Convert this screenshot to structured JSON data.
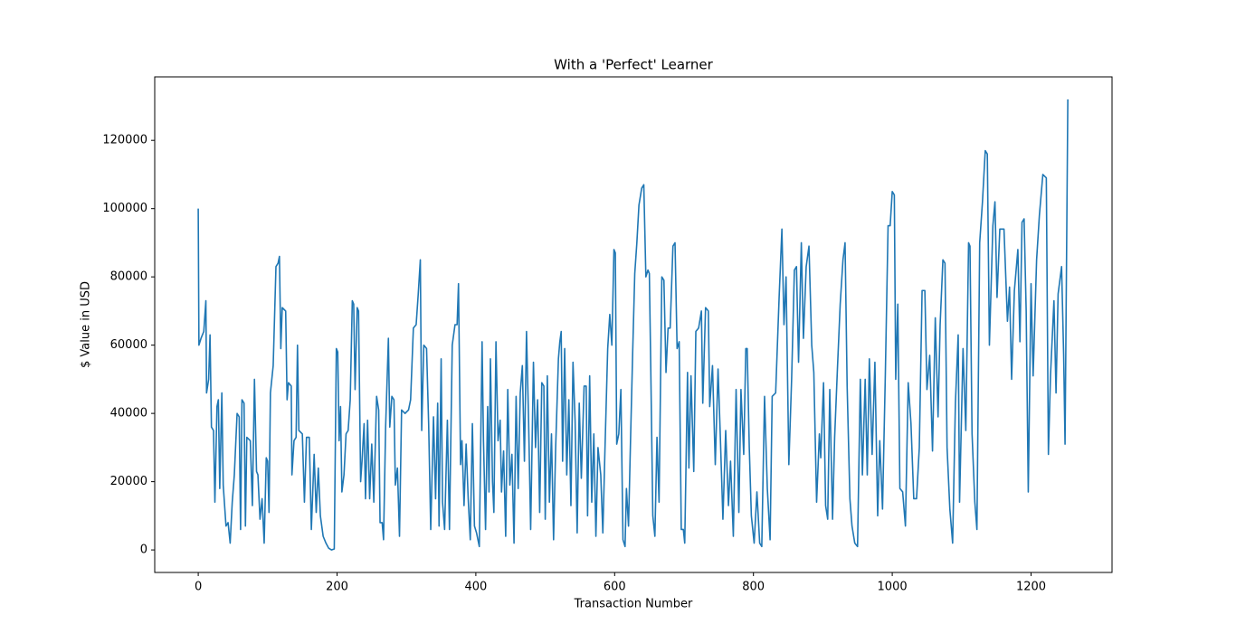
{
  "chart_data": {
    "type": "line",
    "title": "With a 'Perfect' Learner",
    "x_label": "Transaction Number",
    "y_label": "$ Value in USD",
    "xlim": [
      -62.7,
      1316.7
    ],
    "xticks": [
      0,
      200,
      400,
      600,
      800,
      1000,
      1200
    ],
    "ylim": [
      -6600,
      138600
    ],
    "yticks": [
      0,
      20000,
      40000,
      60000,
      80000,
      100000,
      120000
    ],
    "grid": false,
    "x": [
      0,
      1,
      4,
      8,
      11,
      12,
      15,
      17,
      19,
      22,
      24,
      27,
      29,
      31,
      34,
      36,
      40,
      43,
      46,
      49,
      52,
      56,
      59,
      61,
      63,
      66,
      68,
      70,
      75,
      78,
      81,
      84,
      86,
      89,
      92,
      95,
      98,
      100,
      102,
      104,
      108,
      112,
      115,
      117,
      119,
      121,
      126,
      128,
      130,
      134,
      135,
      138,
      141,
      143,
      145,
      150,
      153,
      156,
      160,
      163,
      167,
      170,
      173,
      176,
      180,
      184,
      188,
      192,
      196,
      199,
      201,
      203,
      205,
      207,
      210,
      213,
      216,
      219,
      222,
      224,
      226,
      229,
      231,
      234,
      236,
      239,
      241,
      244,
      247,
      250,
      253,
      257,
      260,
      262,
      265,
      267,
      270,
      274,
      276,
      279,
      282,
      284,
      287,
      290,
      293,
      298,
      303,
      306,
      310,
      314,
      317,
      320,
      322,
      325,
      329,
      332,
      335,
      339,
      342,
      345,
      347,
      350,
      352,
      355,
      359,
      362,
      366,
      370,
      373,
      375,
      378,
      380,
      383,
      386,
      389,
      392,
      395,
      398,
      401,
      405,
      409,
      411,
      414,
      417,
      419,
      421,
      424,
      426,
      429,
      432,
      435,
      437,
      440,
      443,
      446,
      449,
      452,
      455,
      458,
      461,
      464,
      467,
      470,
      473,
      476,
      479,
      483,
      486,
      489,
      492,
      495,
      498,
      500,
      503,
      506,
      509,
      512,
      515,
      519,
      521,
      523,
      525,
      528,
      531,
      534,
      537,
      540,
      543,
      546,
      549,
      552,
      556,
      559,
      561,
      564,
      567,
      570,
      573,
      576,
      580,
      583,
      586,
      590,
      593,
      596,
      599,
      601,
      603,
      606,
      609,
      612,
      615,
      617,
      620,
      623,
      626,
      629,
      632,
      635,
      639,
      642,
      645,
      648,
      650,
      652,
      655,
      658,
      661,
      664,
      668,
      671,
      674,
      677,
      680,
      684,
      687,
      690,
      693,
      696,
      699,
      701,
      705,
      707,
      710,
      714,
      717,
      721,
      725,
      727,
      731,
      735,
      737,
      741,
      745,
      749,
      752,
      756,
      760,
      764,
      767,
      771,
      775,
      779,
      782,
      786,
      789,
      791,
      794,
      797,
      801,
      805,
      809,
      812,
      816,
      820,
      824,
      827,
      832,
      837,
      841,
      844,
      847,
      851,
      855,
      859,
      862,
      865,
      869,
      872,
      876,
      880,
      884,
      887,
      891,
      895,
      897,
      901,
      904,
      907,
      910,
      914,
      917,
      921,
      925,
      929,
      932,
      935,
      939,
      942,
      946,
      950,
      954,
      957,
      961,
      964,
      967,
      971,
      975,
      979,
      982,
      986,
      990,
      994,
      997,
      1000,
      1003,
      1005,
      1008,
      1011,
      1015,
      1019,
      1023,
      1027,
      1031,
      1035,
      1039,
      1043,
      1047,
      1050,
      1054,
      1058,
      1062,
      1066,
      1069,
      1073,
      1076,
      1079,
      1083,
      1087,
      1091,
      1095,
      1097,
      1102,
      1106,
      1110,
      1112,
      1115,
      1119,
      1122,
      1126,
      1130,
      1134,
      1137,
      1140,
      1145,
      1148,
      1151,
      1155,
      1161,
      1166,
      1169,
      1172,
      1176,
      1181,
      1184,
      1187,
      1190,
      1193,
      1196,
      1200,
      1203,
      1208,
      1212,
      1217,
      1222,
      1225,
      1228,
      1233,
      1236,
      1239,
      1244,
      1247,
      1249,
      1253
    ],
    "series": [
      {
        "color": "#1f77b4",
        "values": [
          100000,
          60000,
          62000,
          64000,
          73000,
          46000,
          50000,
          63000,
          36000,
          35000,
          14000,
          42000,
          44000,
          18000,
          46000,
          19000,
          7000,
          8000,
          2000,
          14000,
          22000,
          40000,
          39000,
          6000,
          44000,
          43000,
          7000,
          33000,
          32000,
          13000,
          50000,
          23000,
          22000,
          9000,
          15000,
          2000,
          27000,
          26000,
          11000,
          46000,
          54000,
          83000,
          84000,
          86000,
          59000,
          71000,
          70000,
          44000,
          49000,
          48000,
          22000,
          32000,
          33000,
          60000,
          35000,
          34000,
          14000,
          33000,
          33000,
          6000,
          28000,
          11000,
          24000,
          10000,
          4000,
          2000,
          500,
          0,
          300,
          59000,
          58000,
          32000,
          42000,
          17000,
          22000,
          34000,
          35000,
          44000,
          73000,
          72000,
          47000,
          71000,
          70000,
          20000,
          26000,
          37000,
          15000,
          38000,
          15000,
          31000,
          14000,
          45000,
          41000,
          8000,
          8000,
          3000,
          36000,
          62000,
          36000,
          45000,
          44000,
          19000,
          24000,
          4000,
          41000,
          40000,
          41000,
          44000,
          65000,
          66000,
          75000,
          85000,
          35000,
          60000,
          59000,
          37000,
          6000,
          39000,
          15000,
          43000,
          7000,
          56000,
          14000,
          6000,
          38000,
          6000,
          60000,
          66000,
          66000,
          78000,
          25000,
          32000,
          13000,
          31000,
          15000,
          3000,
          37000,
          7000,
          5000,
          1000,
          61000,
          32000,
          6000,
          42000,
          17000,
          56000,
          20000,
          11000,
          61000,
          32000,
          38000,
          17000,
          29000,
          4000,
          47000,
          19000,
          28000,
          2000,
          45000,
          18000,
          46000,
          54000,
          26000,
          64000,
          38000,
          6000,
          55000,
          30000,
          44000,
          11000,
          49000,
          48000,
          9000,
          51000,
          14000,
          34000,
          3000,
          30000,
          56000,
          61000,
          64000,
          26000,
          59000,
          22000,
          44000,
          13000,
          55000,
          38000,
          5000,
          43000,
          21000,
          48000,
          48000,
          10000,
          51000,
          14000,
          34000,
          4000,
          30000,
          22000,
          5000,
          29000,
          59000,
          69000,
          60000,
          88000,
          87000,
          31000,
          34000,
          47000,
          3000,
          1000,
          18000,
          7000,
          33000,
          58000,
          81000,
          90000,
          101000,
          106000,
          107000,
          80000,
          82000,
          81000,
          54000,
          10000,
          4000,
          33000,
          14000,
          80000,
          79000,
          52000,
          65000,
          65000,
          89000,
          90000,
          59000,
          61000,
          6000,
          6000,
          2000,
          52000,
          24000,
          51000,
          23000,
          64000,
          65000,
          70000,
          43000,
          71000,
          70000,
          42000,
          54000,
          25000,
          53000,
          35000,
          9000,
          35000,
          13000,
          26000,
          4000,
          47000,
          11000,
          47000,
          28000,
          59000,
          59000,
          30000,
          10000,
          2000,
          17000,
          2000,
          1000,
          45000,
          18000,
          3000,
          45000,
          46000,
          74000,
          94000,
          66000,
          80000,
          25000,
          50000,
          82000,
          83000,
          55000,
          90000,
          62000,
          83000,
          89000,
          60000,
          52000,
          14000,
          34000,
          27000,
          49000,
          13000,
          9000,
          47000,
          9000,
          33000,
          53000,
          72000,
          85000,
          90000,
          48000,
          15000,
          7000,
          2000,
          1000,
          50000,
          22000,
          50000,
          22000,
          56000,
          28000,
          55000,
          10000,
          32000,
          12000,
          51000,
          95000,
          95000,
          105000,
          104000,
          50000,
          72000,
          18000,
          17000,
          7000,
          49000,
          37000,
          15000,
          15000,
          30000,
          76000,
          76000,
          47000,
          57000,
          29000,
          68000,
          39000,
          66000,
          85000,
          84000,
          30000,
          12000,
          2000,
          43000,
          63000,
          14000,
          59000,
          35000,
          90000,
          89000,
          34000,
          14000,
          6000,
          90000,
          102000,
          117000,
          116000,
          60000,
          95000,
          102000,
          74000,
          94000,
          94000,
          67000,
          77000,
          50000,
          76000,
          88000,
          61000,
          96000,
          97000,
          70000,
          17000,
          78000,
          51000,
          85000,
          98000,
          110000,
          109000,
          28000,
          51000,
          73000,
          46000,
          75000,
          83000,
          57000,
          31000,
          132000
        ]
      }
    ]
  }
}
